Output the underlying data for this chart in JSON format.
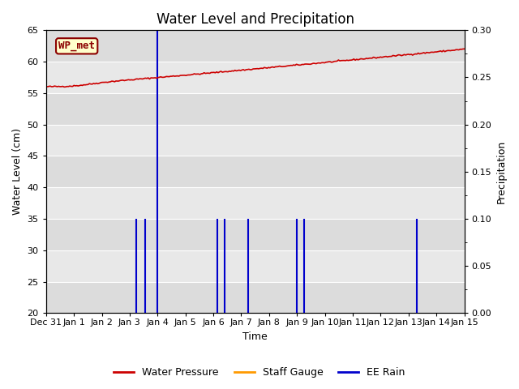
{
  "title": "Water Level and Precipitation",
  "ylabel_left": "Water Level (cm)",
  "ylabel_right": "Precipitation",
  "xlabel": "Time",
  "ylim_left": [
    20,
    65
  ],
  "ylim_right": [
    0.0,
    0.3
  ],
  "plot_bg_color": "#e8e8e8",
  "wp_met_label": "WP_met",
  "legend_items": [
    "Water Pressure",
    "Staff Gauge",
    "EE Rain"
  ],
  "legend_colors": [
    "#cc0000",
    "#ff9900",
    "#0000cc"
  ],
  "water_pressure_color": "#cc0000",
  "rain_color": "#0000cc",
  "staff_gauge_color": "#ff9900",
  "rain_events": [
    {
      "day": 3.25,
      "height": 35
    },
    {
      "day": 3.55,
      "height": 35
    },
    {
      "day": 4.0,
      "height": 65
    },
    {
      "day": 6.15,
      "height": 35
    },
    {
      "day": 6.4,
      "height": 35
    },
    {
      "day": 7.25,
      "height": 35
    },
    {
      "day": 9.0,
      "height": 35
    },
    {
      "day": 9.25,
      "height": 35
    },
    {
      "day": 13.3,
      "height": 35
    }
  ],
  "x_tick_labels": [
    "Dec 31",
    "Jan 1",
    "Jan 2",
    "Jan 3",
    "Jan 4",
    "Jan 5",
    "Jan 6",
    "Jan 7",
    "Jan 8",
    "Jan 9",
    "Jan 10",
    "Jan 11",
    "Jan 12",
    "Jan 13",
    "Jan 14",
    "Jan 15"
  ],
  "x_tick_days": [
    0,
    1,
    2,
    3,
    4,
    5,
    6,
    7,
    8,
    9,
    10,
    11,
    12,
    13,
    14,
    15
  ],
  "yticks_left": [
    20,
    25,
    30,
    35,
    40,
    45,
    50,
    55,
    60,
    65
  ],
  "yticks_right": [
    0.0,
    0.05,
    0.1,
    0.15,
    0.2,
    0.25,
    0.3
  ],
  "band_colors": [
    "#dcdcdc",
    "#e8e8e8"
  ]
}
